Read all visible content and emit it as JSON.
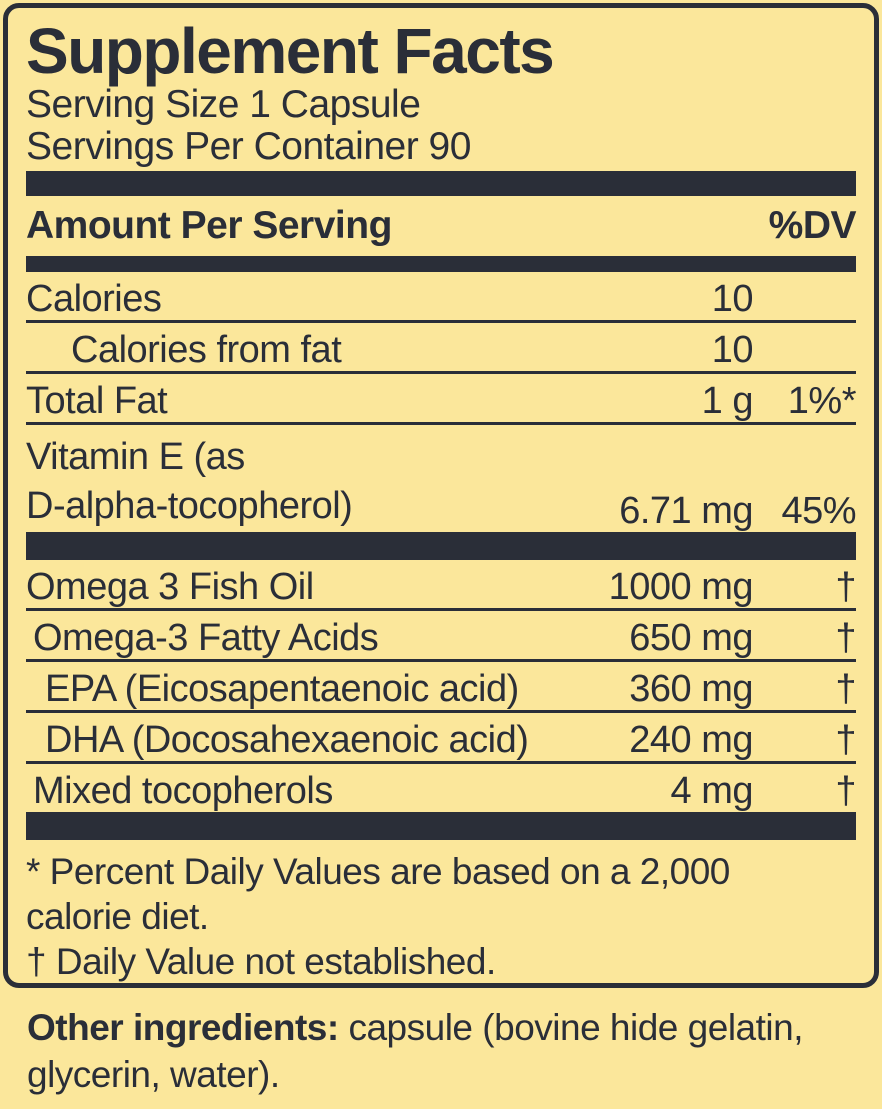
{
  "colors": {
    "background": "#fbe79b",
    "ink": "#2a2e38"
  },
  "panel": {
    "title": "Supplement Facts",
    "serving_size": "Serving Size 1 Capsule",
    "servings_per_container": "Servings Per Container 90",
    "header": {
      "amount_per_serving": "Amount Per Serving",
      "percent_dv": "%DV"
    },
    "nutrient_rows": [
      {
        "name": "Calories",
        "amount": "10",
        "dv": "",
        "indent": 0
      },
      {
        "name": "Calories from fat",
        "amount": "10",
        "dv": "",
        "indent": 3
      },
      {
        "name": "Total Fat",
        "amount": "1 g",
        "dv": "1%*",
        "indent": 0
      },
      {
        "name": "Vitamin E (as\nD-alpha-tocopherol)",
        "amount": "6.71 mg",
        "dv": "45%",
        "indent": 0
      }
    ],
    "supplement_rows": [
      {
        "name": "Omega 3 Fish Oil",
        "amount": "1000 mg",
        "dv": "†",
        "indent": 0
      },
      {
        "name": "Omega-3 Fatty Acids",
        "amount": "650 mg",
        "dv": "†",
        "indent": 1
      },
      {
        "name": "EPA (Eicosapentaenoic acid)",
        "amount": "360 mg",
        "dv": "†",
        "indent": 2
      },
      {
        "name": "DHA (Docosahexaenoic acid)",
        "amount": "240 mg",
        "dv": "†",
        "indent": 2
      },
      {
        "name": "Mixed tocopherols",
        "amount": "4 mg",
        "dv": "†",
        "indent": 1
      }
    ],
    "footnotes": [
      "* Percent Daily Values are based on a 2,000",
      "calorie diet.",
      "† Daily Value not established."
    ]
  },
  "other_ingredients": {
    "label": "Other ingredients:",
    "text": " capsule (bovine hide gelatin, glycerin, water)."
  }
}
